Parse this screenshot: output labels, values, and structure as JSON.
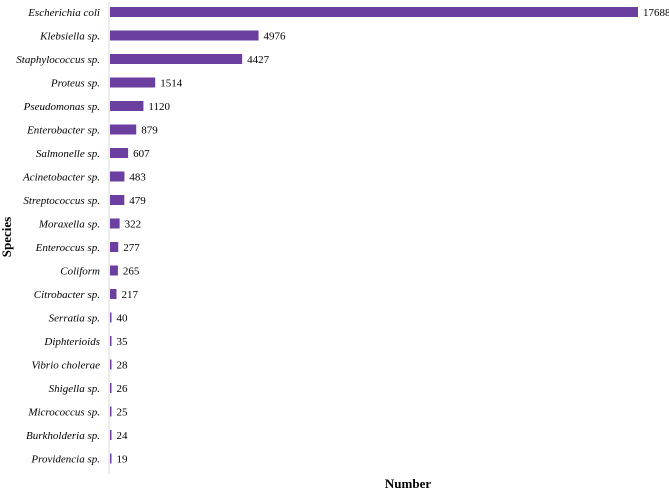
{
  "chart_data": {
    "type": "bar",
    "orientation": "horizontal",
    "xlabel": "Number",
    "ylabel": "Species",
    "xlim": [
      0,
      17688
    ],
    "grid": false,
    "legend": "none",
    "bar_color": "#6B3FA0",
    "categories": [
      "Escherichia coli",
      "Klebsiella sp.",
      "Staphylococcus sp.",
      "Proteus sp.",
      "Pseudomonas sp.",
      "Enterobacter sp.",
      "Salmonelle sp.",
      "Acinetobacter sp.",
      "Streptococcus sp.",
      "Moraxella sp.",
      "Enteroccus sp.",
      "Coliform",
      "Citrobacter sp.",
      "Serratia sp.",
      "Diphterioids",
      "Vibrio cholerae",
      "Shigella sp.",
      "Micrococcus sp.",
      "Burkholderia sp.",
      "Providencia sp."
    ],
    "values": [
      17688,
      4976,
      4427,
      1514,
      1120,
      879,
      607,
      483,
      479,
      322,
      277,
      265,
      217,
      40,
      35,
      28,
      26,
      25,
      24,
      19
    ]
  }
}
